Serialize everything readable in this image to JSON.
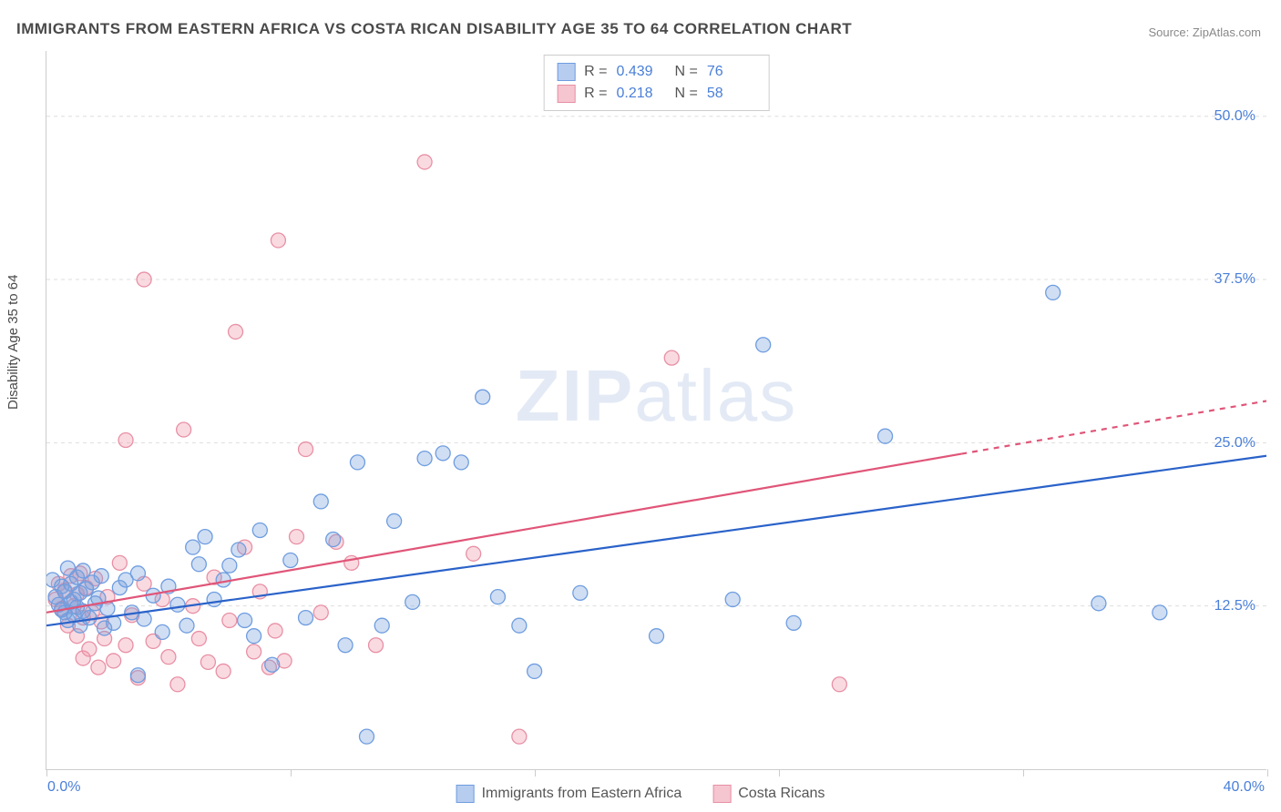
{
  "title": "IMMIGRANTS FROM EASTERN AFRICA VS COSTA RICAN DISABILITY AGE 35 TO 64 CORRELATION CHART",
  "source_text": "Source: ZipAtlas.com",
  "y_axis_label": "Disability Age 35 to 64",
  "watermark": {
    "bold": "ZIP",
    "thin": "atlas"
  },
  "plot": {
    "type": "scatter",
    "x_domain": [
      0,
      40
    ],
    "y_domain": [
      0,
      55
    ],
    "y_gridlines": [
      12.5,
      25.0,
      37.5,
      50.0
    ],
    "ytick_labels": [
      "12.5%",
      "25.0%",
      "37.5%",
      "50.0%"
    ],
    "x_ticks": [
      0,
      8,
      16,
      24,
      32,
      40
    ],
    "x_origin_label": "0.0%",
    "x_max_label": "40.0%",
    "marker_radius": 8,
    "marker_stroke_width": 1.3,
    "background_color": "#ffffff",
    "grid_color": "#dddddd",
    "axis_color": "#cccccc"
  },
  "series": {
    "blue": {
      "label": "Immigrants from Eastern Africa",
      "fill": "rgba(120, 160, 220, 0.35)",
      "stroke": "#6e9de0",
      "swatch_fill": "#b7cdf0",
      "swatch_stroke": "#6e9de0",
      "line_color": "#2a62c9",
      "line_width": 2.2,
      "r_value": "0.439",
      "n_value": "76",
      "regression": {
        "x1": 0,
        "y1": 11.0,
        "x2": 40,
        "y2": 24.0
      },
      "points": [
        [
          0.2,
          14.5
        ],
        [
          0.3,
          13.2
        ],
        [
          0.4,
          12.6
        ],
        [
          0.5,
          14.0
        ],
        [
          0.5,
          12.2
        ],
        [
          0.6,
          13.6
        ],
        [
          0.6,
          12.0
        ],
        [
          0.7,
          15.4
        ],
        [
          0.7,
          11.4
        ],
        [
          0.8,
          12.8
        ],
        [
          0.8,
          14.2
        ],
        [
          0.9,
          13.0
        ],
        [
          0.9,
          11.8
        ],
        [
          1.0,
          12.4
        ],
        [
          1.0,
          14.7
        ],
        [
          1.1,
          11.0
        ],
        [
          1.1,
          13.5
        ],
        [
          1.2,
          12.1
        ],
        [
          1.2,
          15.2
        ],
        [
          1.3,
          13.8
        ],
        [
          1.4,
          11.6
        ],
        [
          1.5,
          14.3
        ],
        [
          1.6,
          12.7
        ],
        [
          1.7,
          13.1
        ],
        [
          1.8,
          14.8
        ],
        [
          1.9,
          10.8
        ],
        [
          2.0,
          12.3
        ],
        [
          2.2,
          11.2
        ],
        [
          2.4,
          13.9
        ],
        [
          2.6,
          14.5
        ],
        [
          2.8,
          12.0
        ],
        [
          3.0,
          15.0
        ],
        [
          3.0,
          7.2
        ],
        [
          3.2,
          11.5
        ],
        [
          3.5,
          13.3
        ],
        [
          3.8,
          10.5
        ],
        [
          4.0,
          14.0
        ],
        [
          4.3,
          12.6
        ],
        [
          4.6,
          11.0
        ],
        [
          4.8,
          17.0
        ],
        [
          5.0,
          15.7
        ],
        [
          5.2,
          17.8
        ],
        [
          5.5,
          13.0
        ],
        [
          5.8,
          14.5
        ],
        [
          6.0,
          15.6
        ],
        [
          6.3,
          16.8
        ],
        [
          6.5,
          11.4
        ],
        [
          6.8,
          10.2
        ],
        [
          7.0,
          18.3
        ],
        [
          7.4,
          8.0
        ],
        [
          8.0,
          16.0
        ],
        [
          8.5,
          11.6
        ],
        [
          9.0,
          20.5
        ],
        [
          9.4,
          17.6
        ],
        [
          9.8,
          9.5
        ],
        [
          10.2,
          23.5
        ],
        [
          10.5,
          2.5
        ],
        [
          11.0,
          11.0
        ],
        [
          11.4,
          19.0
        ],
        [
          12.0,
          12.8
        ],
        [
          12.4,
          23.8
        ],
        [
          13.0,
          24.2
        ],
        [
          13.6,
          23.5
        ],
        [
          14.3,
          28.5
        ],
        [
          14.8,
          13.2
        ],
        [
          15.5,
          11.0
        ],
        [
          16.0,
          7.5
        ],
        [
          17.5,
          13.5
        ],
        [
          20.0,
          10.2
        ],
        [
          22.5,
          13.0
        ],
        [
          23.5,
          32.5
        ],
        [
          24.5,
          11.2
        ],
        [
          27.5,
          25.5
        ],
        [
          33.0,
          36.5
        ],
        [
          34.5,
          12.7
        ],
        [
          36.5,
          12.0
        ]
      ]
    },
    "pink": {
      "label": "Costa Ricans",
      "fill": "rgba(240, 150, 170, 0.35)",
      "stroke": "#e890a5",
      "swatch_fill": "#f5c5d0",
      "swatch_stroke": "#e890a5",
      "line_color": "#e05578",
      "line_width": 2.2,
      "line_dash_after_x": 30,
      "r_value": "0.218",
      "n_value": "58",
      "regression": {
        "x1": 0,
        "y1": 12.0,
        "x2": 40,
        "y2": 28.2
      },
      "points": [
        [
          0.3,
          13.0
        ],
        [
          0.4,
          14.2
        ],
        [
          0.5,
          12.3
        ],
        [
          0.6,
          13.7
        ],
        [
          0.7,
          11.0
        ],
        [
          0.8,
          14.8
        ],
        [
          0.9,
          12.5
        ],
        [
          1.0,
          10.2
        ],
        [
          1.0,
          13.4
        ],
        [
          1.1,
          15.0
        ],
        [
          1.2,
          8.5
        ],
        [
          1.2,
          11.6
        ],
        [
          1.3,
          13.9
        ],
        [
          1.4,
          9.2
        ],
        [
          1.5,
          12.0
        ],
        [
          1.6,
          14.6
        ],
        [
          1.7,
          7.8
        ],
        [
          1.8,
          11.3
        ],
        [
          1.9,
          10.0
        ],
        [
          2.0,
          13.2
        ],
        [
          2.2,
          8.3
        ],
        [
          2.4,
          15.8
        ],
        [
          2.6,
          9.5
        ],
        [
          2.6,
          25.2
        ],
        [
          2.8,
          11.8
        ],
        [
          3.0,
          7.0
        ],
        [
          3.2,
          37.5
        ],
        [
          3.2,
          14.2
        ],
        [
          3.5,
          9.8
        ],
        [
          3.8,
          13.0
        ],
        [
          4.0,
          8.6
        ],
        [
          4.3,
          6.5
        ],
        [
          4.5,
          26.0
        ],
        [
          4.8,
          12.5
        ],
        [
          5.0,
          10.0
        ],
        [
          5.3,
          8.2
        ],
        [
          5.5,
          14.7
        ],
        [
          5.8,
          7.5
        ],
        [
          6.0,
          11.4
        ],
        [
          6.2,
          33.5
        ],
        [
          6.5,
          17.0
        ],
        [
          6.8,
          9.0
        ],
        [
          7.0,
          13.6
        ],
        [
          7.3,
          7.8
        ],
        [
          7.5,
          10.6
        ],
        [
          7.6,
          40.5
        ],
        [
          7.8,
          8.3
        ],
        [
          8.2,
          17.8
        ],
        [
          8.5,
          24.5
        ],
        [
          9.0,
          12.0
        ],
        [
          9.5,
          17.4
        ],
        [
          10.0,
          15.8
        ],
        [
          10.8,
          9.5
        ],
        [
          12.4,
          46.5
        ],
        [
          14.0,
          16.5
        ],
        [
          15.5,
          2.5
        ],
        [
          20.5,
          31.5
        ],
        [
          26.0,
          6.5
        ]
      ]
    }
  },
  "stats_legend": {
    "r_label": "R =",
    "n_label": "N ="
  },
  "colors": {
    "tick_label": "#4a7fd8",
    "title": "#4a4a4a",
    "source": "#888888"
  }
}
